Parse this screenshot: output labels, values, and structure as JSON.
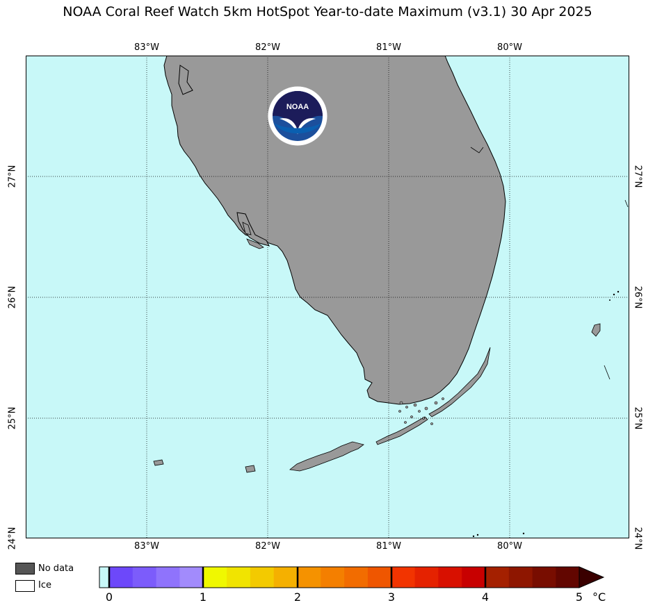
{
  "title": "NOAA Coral Reef Watch 5km HotSpot Year-to-date Maximum  (v3.1)   30 Apr 2025",
  "map": {
    "lon_range": [
      -84.0,
      -79.0
    ],
    "lat_range": [
      24.0,
      28.0
    ],
    "lon_ticks": [
      "83°W",
      "82°W",
      "81°W",
      "80°W"
    ],
    "lat_ticks": [
      "27°N",
      "26°N",
      "25°N",
      "24°N"
    ],
    "gridlines": true,
    "ocean_color": "#c8f8f8",
    "land_color": "#999999",
    "logo": "NOAA"
  },
  "legend": {
    "no_data_label": "No data",
    "no_data_color": "#555555",
    "ice_label": "Ice",
    "ice_color": "#ffffff"
  },
  "colorbar": {
    "ticks": [
      "0",
      "1",
      "2",
      "3",
      "4",
      "5"
    ],
    "unit": "°C",
    "colors": [
      "#c8f8f8",
      "#6d48fa",
      "#7c5cfb",
      "#8f73fc",
      "#a28bfc",
      "#f0f800",
      "#f1e400",
      "#f3ca00",
      "#f5b000",
      "#f59200",
      "#f47f00",
      "#f26c00",
      "#ef5600",
      "#f23400",
      "#e52200",
      "#d81000",
      "#c80000",
      "#a42000",
      "#8e1600",
      "#780d00",
      "#620600"
    ],
    "arrow_color": "#3a0000"
  }
}
